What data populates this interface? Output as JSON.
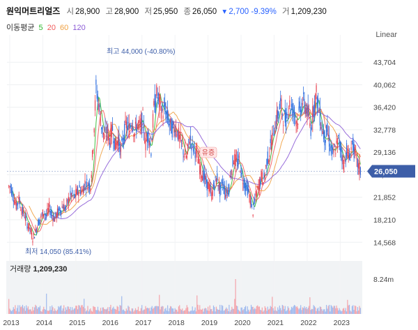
{
  "header": {
    "name": "원익머트리얼즈",
    "open_label": "시",
    "open": "28,900",
    "high_label": "고",
    "high": "28,900",
    "low_label": "저",
    "low": "25,950",
    "close_label": "종",
    "close": "26,050",
    "change": "▾ 2,700 -9.39%",
    "volume_label": "거",
    "volume": "1,209,230"
  },
  "moving_average": {
    "label": "이동평균",
    "periods": [
      {
        "value": "5",
        "color": "#2eb82e"
      },
      {
        "value": "20",
        "color": "#f05a5a"
      },
      {
        "value": "60",
        "color": "#f0a040"
      },
      {
        "value": "120",
        "color": "#8c5cd6"
      }
    ]
  },
  "scale_mode": "Linear",
  "volume_panel": {
    "label": "거래량",
    "value": "1,209,230",
    "max_label": "8.24m"
  },
  "colors": {
    "up": "#e8414f",
    "down": "#2f6fe0",
    "current_tag": "#3d5ea8"
  },
  "chart_data": {
    "type": "candlestick",
    "x_ticks": [
      "2013",
      "2014",
      "2015",
      "2016",
      "2017",
      "2018",
      "2019",
      "2020",
      "2021",
      "2022",
      "2023"
    ],
    "y_ticks": [
      "43,704",
      "40,062",
      "36,420",
      "32,778",
      "29,136",
      "25,494",
      "21,852",
      "18,210",
      "14,568"
    ],
    "y_range": [
      12000,
      47000
    ],
    "current_price": "26,050",
    "high_annotation": "최고 44,000 (-40.80%)",
    "low_annotation": "최저 14,050 (85.41%)",
    "event_marker": "유증",
    "volume_max": 8240000,
    "monthly": [
      {
        "year": 2013,
        "close": [
          23600,
          22000,
          20500,
          21500,
          19800,
          19000,
          17500,
          16800,
          15200,
          16200,
          17800,
          18500
        ]
      },
      {
        "year": 2014,
        "close": [
          19500,
          18800,
          20200,
          19000,
          18400,
          19300,
          19800,
          20500,
          20000,
          21500,
          22300,
          21800
        ]
      },
      {
        "year": 2015,
        "close": [
          22500,
          23200,
          22800,
          24200,
          24000,
          23800,
          30500,
          39500,
          37000,
          33500,
          31500,
          32500
        ]
      },
      {
        "year": 2016,
        "close": [
          31000,
          33000,
          30000,
          31500,
          29200,
          31800,
          33500,
          32800,
          34500,
          32200,
          33800,
          33000
        ]
      },
      {
        "year": 2017,
        "close": [
          34500,
          30500,
          32200,
          29500,
          36200,
          38500,
          37200,
          35600,
          36000,
          34700,
          33300,
          32800
        ]
      },
      {
        "year": 2018,
        "close": [
          33200,
          31800,
          30500,
          29000,
          28200,
          31500,
          30200,
          29500,
          28000,
          26200,
          25400,
          24200
        ]
      },
      {
        "year": 2019,
        "close": [
          23500,
          22200,
          24000,
          25000,
          22800,
          24300,
          22500,
          23000,
          25800,
          28200,
          27400,
          27800
        ]
      },
      {
        "year": 2020,
        "close": [
          25200,
          24000,
          23200,
          21500,
          19500,
          22000,
          23500,
          25200,
          24800,
          27500,
          29200,
          31500
        ]
      },
      {
        "year": 2021,
        "close": [
          33500,
          35200,
          36800,
          35000,
          34200,
          37000,
          36400,
          35500,
          34200,
          35800,
          37400,
          36600
        ]
      },
      {
        "year": 2022,
        "close": [
          35200,
          33000,
          36400,
          38500,
          35800,
          33200,
          31500,
          32500,
          30200,
          28600,
          29800,
          31000
        ]
      },
      {
        "year": 2023,
        "close": [
          29600,
          27000,
          29500,
          28000,
          30800,
          28800,
          27200,
          26050
        ]
      }
    ]
  }
}
